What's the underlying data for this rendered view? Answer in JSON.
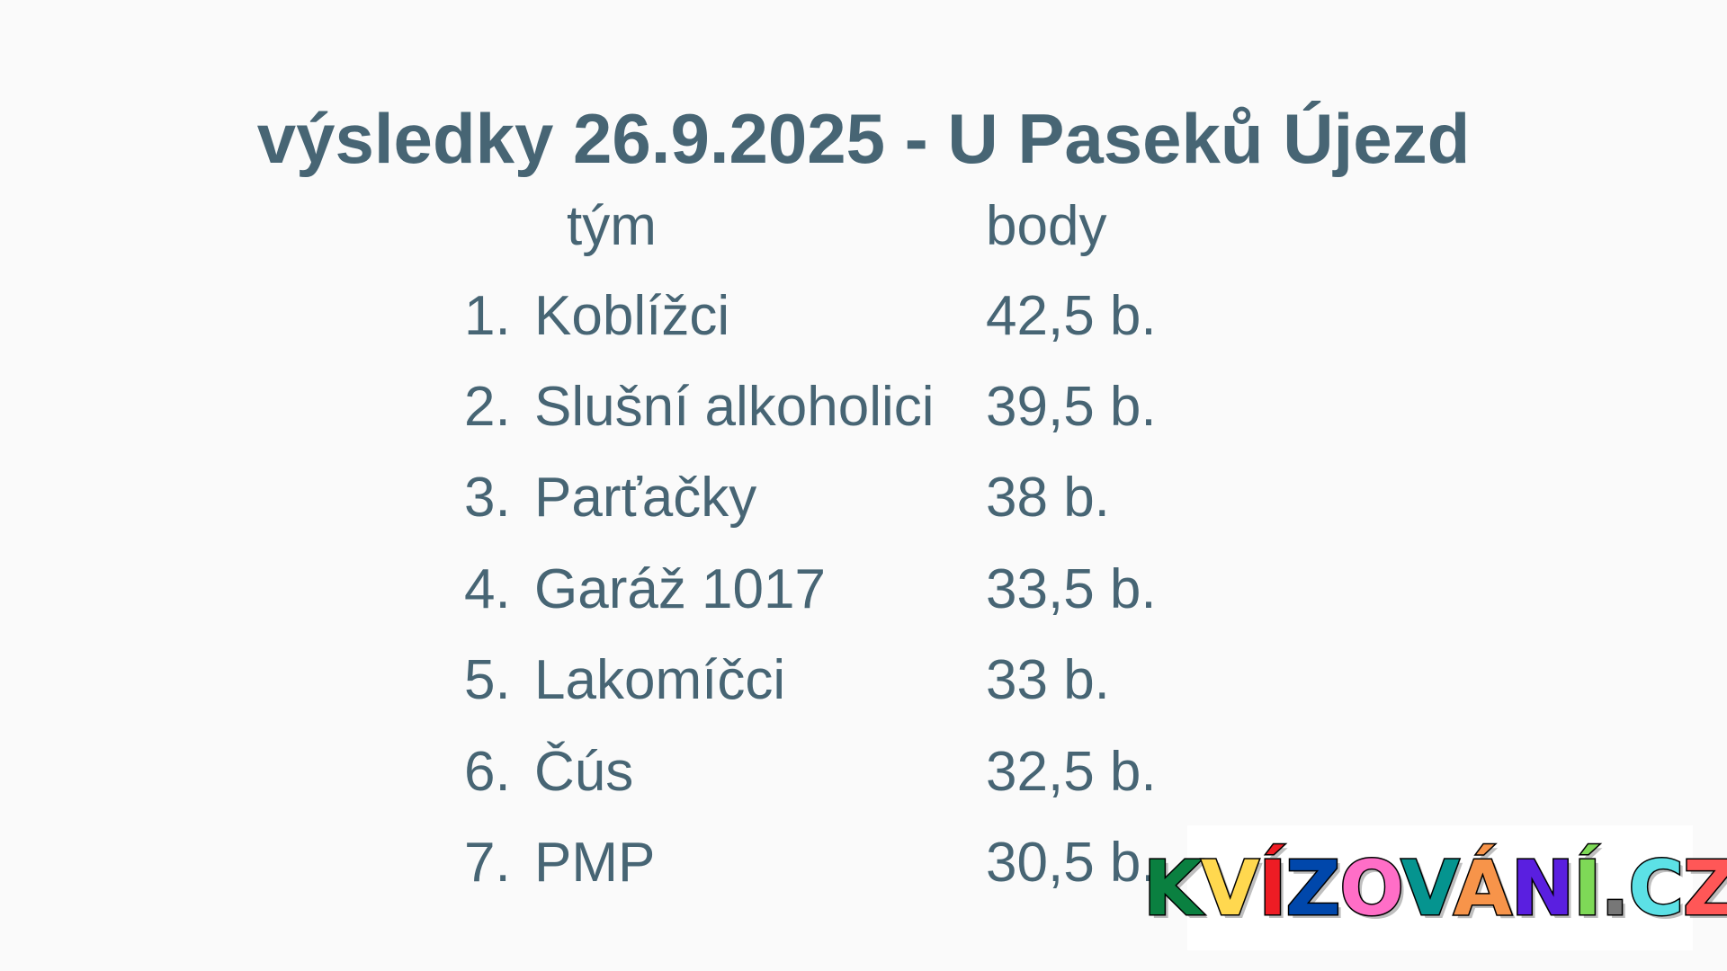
{
  "title": "výsledky 26.9.2025 - U Paseků Újezd",
  "headers": {
    "team": "tým",
    "points": "body"
  },
  "rows": [
    {
      "rank": "1.",
      "team": "Koblížci",
      "points": "42,5 b."
    },
    {
      "rank": "2.",
      "team": "Slušní alkoholici",
      "points": "39,5 b."
    },
    {
      "rank": "3.",
      "team": "Parťačky",
      "points": "38 b."
    },
    {
      "rank": "4.",
      "team": "Garáž 1017",
      "points": "33,5 b."
    },
    {
      "rank": "5.",
      "team": "Lakomíčci",
      "points": "33 b."
    },
    {
      "rank": "6.",
      "team": "Čús",
      "points": "32,5 b."
    },
    {
      "rank": "7.",
      "team": "PMP",
      "points": "30,5 b."
    }
  ],
  "logo": {
    "text": "KVÍZOVÁNÍ.CZ",
    "colors": [
      "#0a8040",
      "#ffd84f",
      "#ee1c24",
      "#0047ab",
      "#ff6ec7",
      "#05948f",
      "#f7944a",
      "#5a1fe0",
      "#7ed957",
      "#777777",
      "#5ce1e6",
      "#ff5757"
    ]
  },
  "colors": {
    "text": "#476574",
    "background": "#fafafa"
  }
}
